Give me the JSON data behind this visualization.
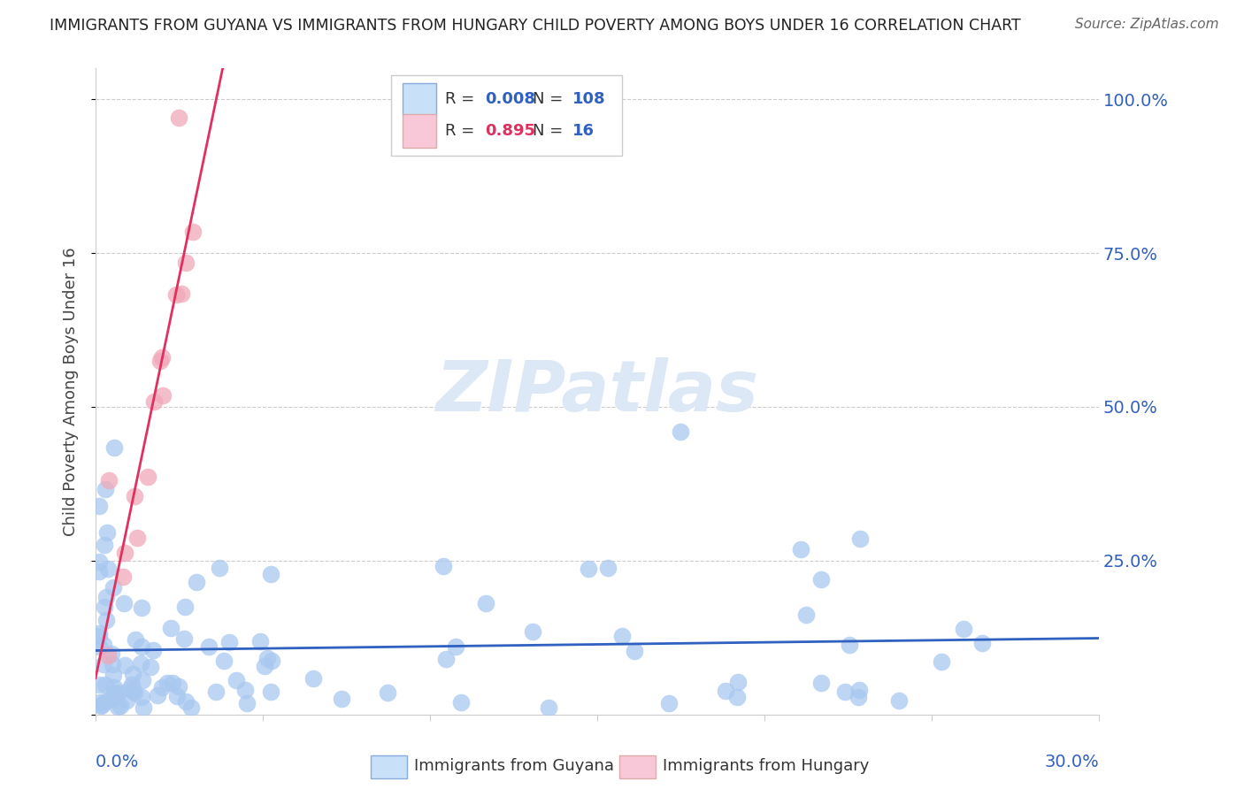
{
  "title": "IMMIGRANTS FROM GUYANA VS IMMIGRANTS FROM HUNGARY CHILD POVERTY AMONG BOYS UNDER 16 CORRELATION CHART",
  "source": "Source: ZipAtlas.com",
  "ylabel": "Child Poverty Among Boys Under 16",
  "watermark": "ZIPatlas",
  "guyana_R": 0.008,
  "guyana_N": 108,
  "hungary_R": 0.895,
  "hungary_N": 16,
  "guyana_color": "#a8c8f0",
  "hungary_color": "#f0a8b8",
  "guyana_line_color": "#3060c0",
  "hungary_line_color": "#e03060",
  "legend_box_color": "#c8e0f8",
  "legend_box_color2": "#f8c8d8",
  "R_color_guyana": "#3060c0",
  "R_color_hungary": "#e03060",
  "xlim": [
    0.0,
    0.3
  ],
  "ylim": [
    0.0,
    1.05
  ],
  "yticks": [
    0.0,
    0.25,
    0.5,
    0.75,
    1.0
  ],
  "ytick_labels": [
    "",
    "25.0%",
    "50.0%",
    "75.0%",
    "100.0%"
  ]
}
